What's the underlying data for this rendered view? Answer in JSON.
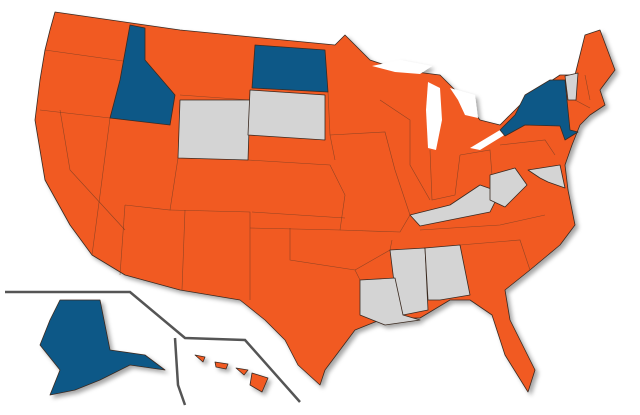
{
  "map": {
    "colors": [
      "#f15a24",
      "#0f5887",
      "#d4d4d4"
    ]
  }
}
